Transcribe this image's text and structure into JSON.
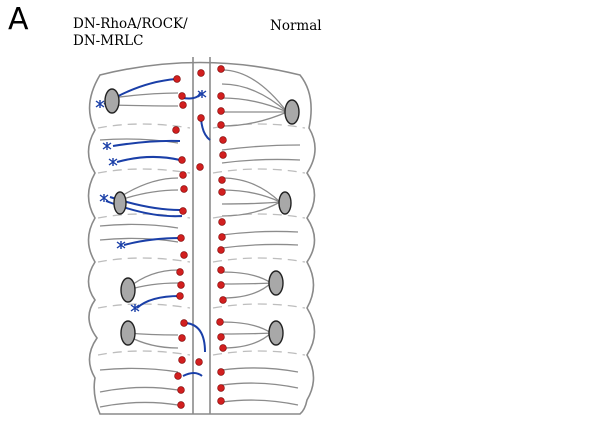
{
  "figure": {
    "panel_letter": "A",
    "left_label": "DN-RhoA/ROCK/\nDN-MRLC",
    "right_label": "Normal"
  },
  "colors": {
    "outline": "#8a8a8a",
    "neuron": "#8c8c8c",
    "cell_body": "#d11f1f",
    "cell_body_stroke": "#7a0000",
    "target_fill": "#a8a8a8",
    "target_stroke": "#222222",
    "axon": "#1a3fa8",
    "dashed": "#bdbdbd"
  }
}
